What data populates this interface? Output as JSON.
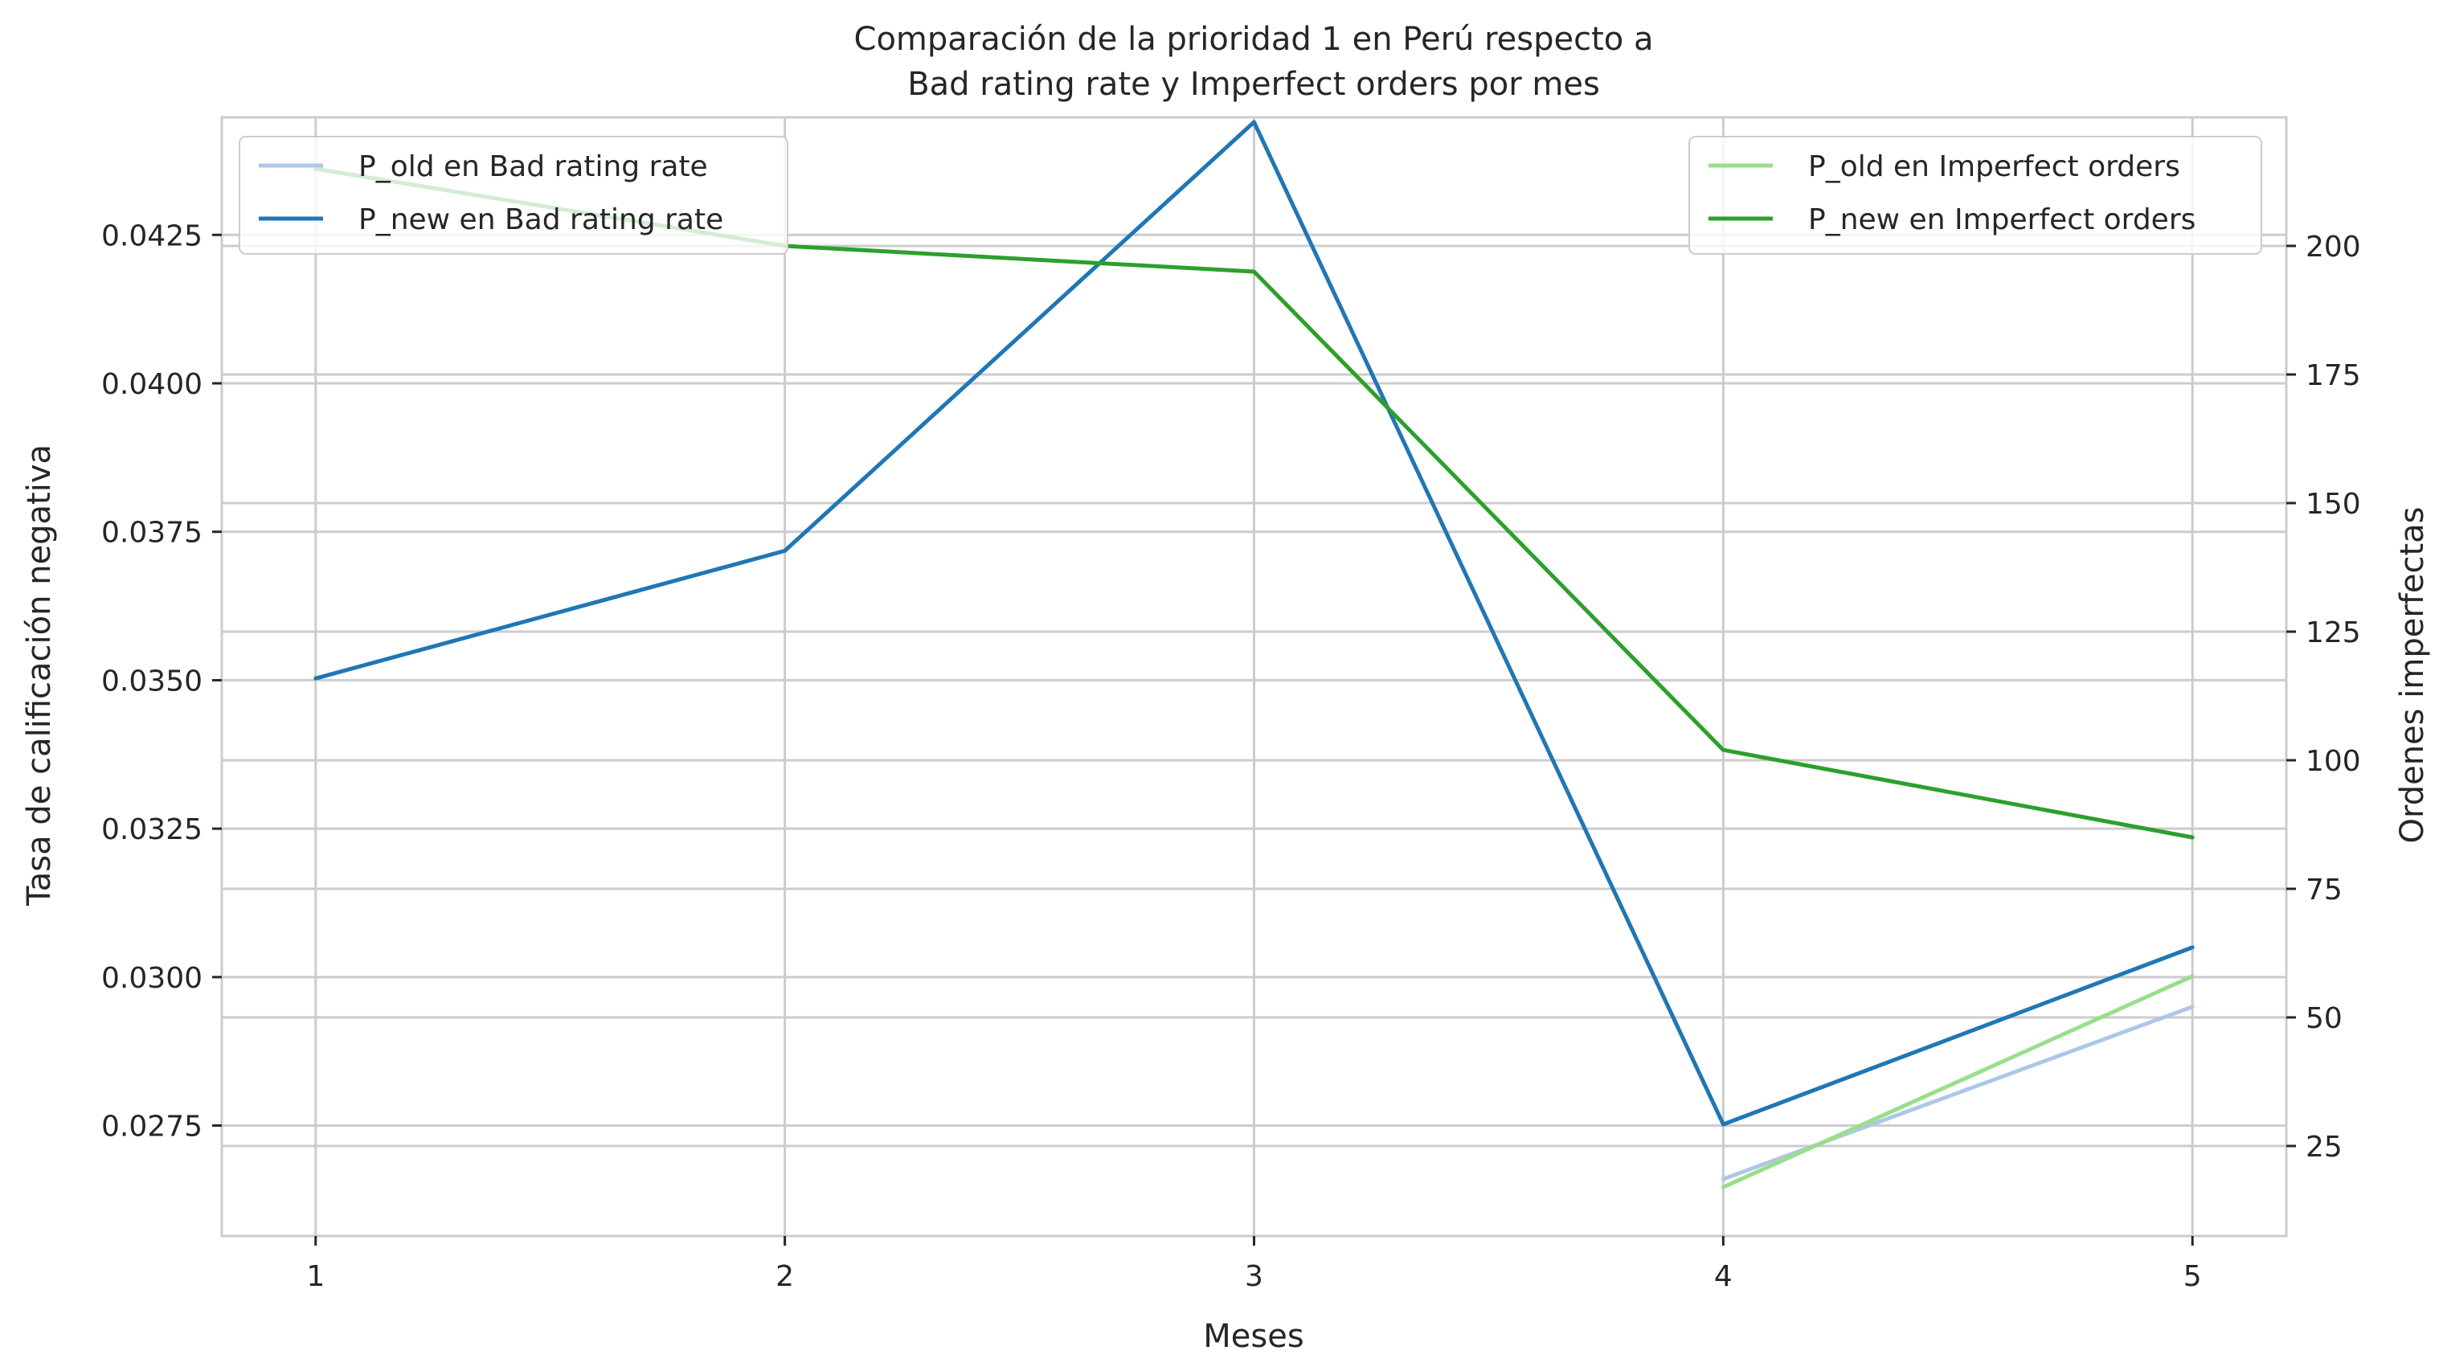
{
  "chart_data": {
    "type": "line",
    "title": [
      "Comparación de la prioridad 1 en Perú respecto a",
      "Bad rating rate y Imperfect orders por mes"
    ],
    "xlabel": "Meses",
    "ylabel_left": "Tasa de calificación negativa",
    "ylabel_right": "Ordenes imperfectas",
    "x": [
      1,
      2,
      3,
      4,
      5
    ],
    "x_ticks": [
      "1",
      "2",
      "3",
      "4",
      "5"
    ],
    "xlim": [
      0.8,
      5.2
    ],
    "ylim_left": [
      0.02564,
      0.04448
    ],
    "ylim_right": [
      7.5,
      225
    ],
    "left_ticks": [
      {
        "value": 0.0275,
        "label": "0.0275"
      },
      {
        "value": 0.03,
        "label": "0.0300"
      },
      {
        "value": 0.0325,
        "label": "0.0325"
      },
      {
        "value": 0.035,
        "label": "0.0350"
      },
      {
        "value": 0.0375,
        "label": "0.0375"
      },
      {
        "value": 0.04,
        "label": "0.0400"
      },
      {
        "value": 0.0425,
        "label": "0.0425"
      }
    ],
    "right_ticks": [
      {
        "value": 25,
        "label": "25"
      },
      {
        "value": 50,
        "label": "50"
      },
      {
        "value": 75,
        "label": "75"
      },
      {
        "value": 100,
        "label": "100"
      },
      {
        "value": 125,
        "label": "125"
      },
      {
        "value": 150,
        "label": "150"
      },
      {
        "value": 175,
        "label": "175"
      },
      {
        "value": 200,
        "label": "200"
      }
    ],
    "grid": true,
    "series_left": [
      {
        "name": "P_old en Bad rating rate",
        "color": "#aec7e8",
        "points": [
          [
            4,
            0.0266
          ],
          [
            5,
            0.0295
          ]
        ]
      },
      {
        "name": "P_new en Bad rating rate",
        "color": "#1f77b4",
        "points": [
          [
            1,
            0.03503
          ],
          [
            2,
            0.03718
          ],
          [
            3,
            0.0444
          ],
          [
            4,
            0.02752
          ],
          [
            5,
            0.0305
          ]
        ]
      }
    ],
    "series_right": [
      {
        "name": "P_old en Imperfect orders",
        "color": "#98df8a",
        "points": [
          [
            4,
            17
          ],
          [
            5,
            58
          ]
        ]
      },
      {
        "name": "P_new en Imperfect orders",
        "color": "#2ca02c",
        "points": [
          [
            1,
            215
          ],
          [
            2,
            200
          ],
          [
            3,
            195
          ],
          [
            4,
            102
          ],
          [
            5,
            85
          ]
        ]
      }
    ],
    "legend_left_position": "upper left",
    "legend_right_position": "upper right"
  }
}
